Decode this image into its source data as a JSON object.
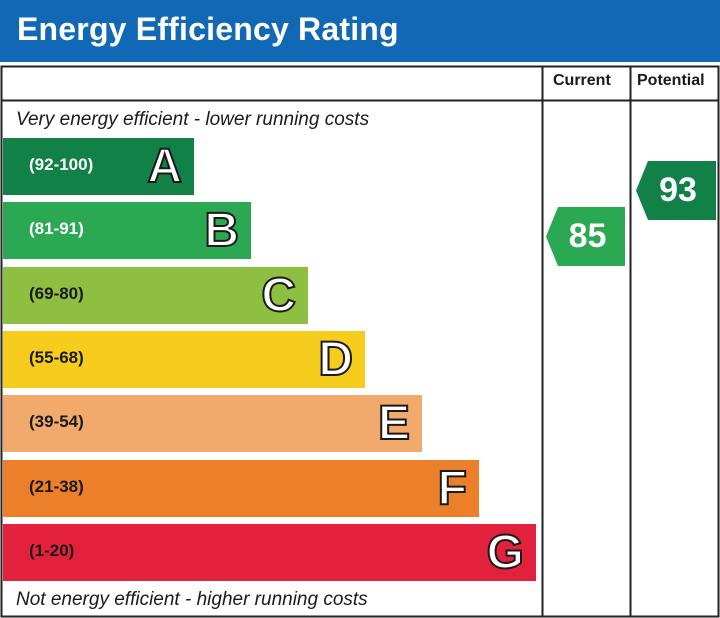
{
  "title": "Energy Efficiency Rating",
  "colors": {
    "header": "#1168b4",
    "grid_line": "#222222"
  },
  "chart_data": {
    "type": "bar",
    "title": "Energy Efficiency Rating",
    "columns": {
      "current": "Current",
      "potential": "Potential"
    },
    "top_caption": "Very energy efficient - lower running costs",
    "bottom_caption": "Not energy efficient - higher running costs",
    "bands": [
      {
        "letter": "A",
        "range": "(92-100)",
        "min": 92,
        "max": 100,
        "color": "#118148",
        "range_color": "#ffffff"
      },
      {
        "letter": "B",
        "range": "(81-91)",
        "min": 81,
        "max": 91,
        "color": "#2aa952",
        "range_color": "#ffffff"
      },
      {
        "letter": "C",
        "range": "(69-80)",
        "min": 69,
        "max": 80,
        "color": "#8fbf41",
        "range_color": "#1a1a1a"
      },
      {
        "letter": "D",
        "range": "(55-68)",
        "min": 55,
        "max": 68,
        "color": "#f6cd1c",
        "range_color": "#1a1a1a"
      },
      {
        "letter": "E",
        "range": "(39-54)",
        "min": 39,
        "max": 54,
        "color": "#f1a96c",
        "range_color": "#1a1a1a"
      },
      {
        "letter": "F",
        "range": "(21-38)",
        "min": 21,
        "max": 38,
        "color": "#eb7f2a",
        "range_color": "#1a1a1a"
      },
      {
        "letter": "G",
        "range": "(1-20)",
        "min": 1,
        "max": 20,
        "color": "#e2213d",
        "range_color": "#1a1a1a"
      }
    ],
    "current": {
      "value": 85,
      "band": "B",
      "color": "#2aa952"
    },
    "potential": {
      "value": 93,
      "band": "A",
      "color": "#118148"
    }
  }
}
